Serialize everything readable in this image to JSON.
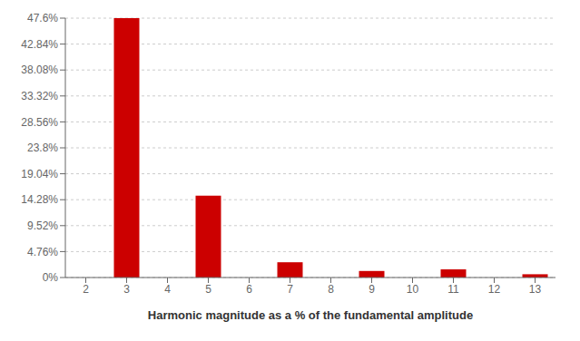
{
  "chart_data": {
    "type": "bar",
    "xlabel": "Harmonic magnitude as a % of the fundamental amplitude",
    "x": [
      3,
      5,
      7,
      9,
      11,
      13
    ],
    "values": [
      47.6,
      15.0,
      2.8,
      1.2,
      1.5,
      0.6
    ],
    "color": "#cc0000",
    "xlim": [
      1.5,
      13.5
    ],
    "xticks": [
      2,
      3,
      4,
      5,
      6,
      7,
      8,
      9,
      10,
      11,
      12,
      13
    ],
    "ylim": [
      0,
      47.6
    ],
    "yticks": [
      {
        "value": 0,
        "label": "0%"
      },
      {
        "value": 4.76,
        "label": "4.76%"
      },
      {
        "value": 9.52,
        "label": "9.52%"
      },
      {
        "value": 14.28,
        "label": "14.28%"
      },
      {
        "value": 19.04,
        "label": "19.04%"
      },
      {
        "value": 23.8,
        "label": "23.8%"
      },
      {
        "value": 28.56,
        "label": "28.56%"
      },
      {
        "value": 33.32,
        "label": "33.32%"
      },
      {
        "value": 38.08,
        "label": "38.08%"
      },
      {
        "value": 42.84,
        "label": "42.84%"
      },
      {
        "value": 47.6,
        "label": "47.6%"
      }
    ],
    "grid": true
  }
}
